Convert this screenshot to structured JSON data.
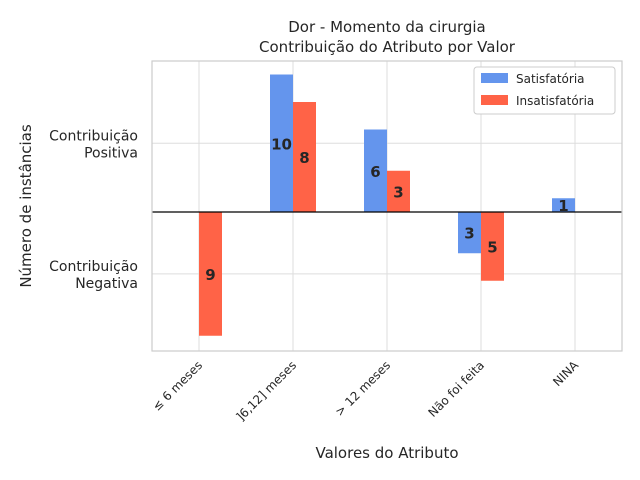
{
  "chart_data": {
    "type": "bar",
    "title": "Dor - Momento da cirurgia",
    "subtitle": "Contribuição do Atributo por Valor",
    "xlabel": "Valores do Atributo",
    "ylabel": "Número de instâncias",
    "categories": [
      "≤ 6 meses",
      "]6,12] meses",
      "> 12 meses",
      "Não foi feita",
      "NINA"
    ],
    "series": [
      {
        "name": "Satisfatória",
        "color": "#6495ED",
        "values": [
          0,
          10,
          6,
          -3,
          1
        ],
        "labels": [
          "",
          "10",
          "6",
          "3",
          "1"
        ]
      },
      {
        "name": "Insatisfatória",
        "color": "#FF6347",
        "values": [
          -9,
          8,
          3,
          -5,
          0
        ],
        "labels": [
          "9",
          "8",
          "3",
          "5",
          ""
        ]
      }
    ],
    "yticks": [
      {
        "value": 5,
        "label_lines": [
          "Contribuição",
          "Positiva"
        ]
      },
      {
        "value": -4.5,
        "label_lines": [
          "Contribuição",
          "Negativa"
        ]
      }
    ],
    "ylim": [
      -10,
      11
    ],
    "grid": true,
    "legend_position": "top-right"
  }
}
